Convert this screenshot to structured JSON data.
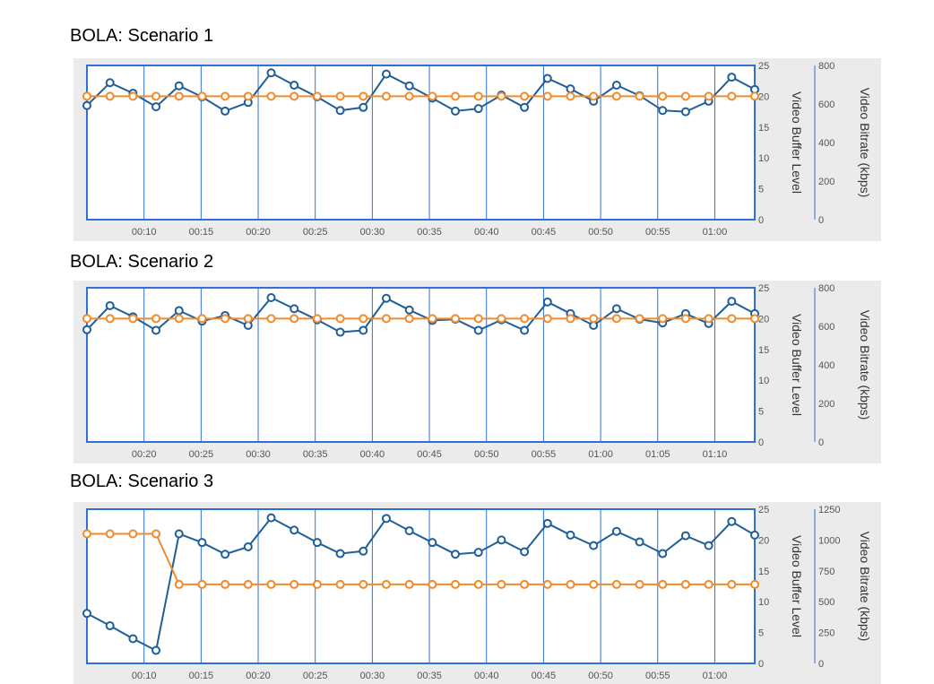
{
  "charts": [
    {
      "title": "BOLA: Scenario 1",
      "chart_data": {
        "type": "line",
        "x_ticks": [
          "00:10",
          "00:15",
          "00:20",
          "00:25",
          "00:30",
          "00:35",
          "00:40",
          "00:45",
          "00:50",
          "00:55",
          "01:00"
        ],
        "right_axis_1": {
          "label": "Video Buffer Level",
          "range": [
            0,
            25
          ],
          "ticks": [
            "0",
            "5",
            "10",
            "15",
            "20",
            "25"
          ]
        },
        "right_axis_2": {
          "label": "Video Bitrate (kbps)",
          "range": [
            0,
            800
          ],
          "ticks": [
            "0",
            "200",
            "400",
            "600",
            "800"
          ]
        },
        "series": [
          {
            "color": "#1f5f99",
            "axis": "buffer",
            "values": [
              18.5,
              22.2,
              20.5,
              18.3,
              21.7,
              19.9,
              17.6,
              19.0,
              23.8,
              21.8,
              19.9,
              17.7,
              18.2,
              23.6,
              21.7,
              19.7,
              17.6,
              18.0,
              20.2,
              18.2,
              22.9,
              21.2,
              19.2,
              21.8,
              20.1,
              17.7,
              17.5,
              19.2,
              23.1,
              21.1
            ]
          },
          {
            "color": "#f28a2a",
            "axis": "bitrate",
            "values": [
              640,
              640,
              640,
              640,
              640,
              640,
              640,
              640,
              640,
              640,
              640,
              640,
              640,
              640,
              640,
              640,
              640,
              640,
              640,
              640,
              640,
              640,
              640,
              640,
              640,
              640,
              640,
              640,
              640,
              640
            ]
          }
        ]
      }
    },
    {
      "title": "BOLA: Scenario 2",
      "chart_data": {
        "type": "line",
        "x_ticks": [
          "00:20",
          "00:25",
          "00:30",
          "00:35",
          "00:40",
          "00:45",
          "00:50",
          "00:55",
          "01:00",
          "01:05",
          "01:10"
        ],
        "right_axis_1": {
          "label": "Video Buffer Level",
          "range": [
            0,
            25
          ],
          "ticks": [
            "0",
            "5",
            "10",
            "15",
            "20",
            "25"
          ]
        },
        "right_axis_2": {
          "label": "Video Bitrate (kbps)",
          "range": [
            0,
            800
          ],
          "ticks": [
            "0",
            "200",
            "400",
            "600",
            "800"
          ]
        },
        "series": [
          {
            "color": "#1f5f99",
            "axis": "buffer",
            "values": [
              18.2,
              22.1,
              20.3,
              18.1,
              21.3,
              19.6,
              20.5,
              18.9,
              23.4,
              21.6,
              19.8,
              17.8,
              18.1,
              23.3,
              21.4,
              19.7,
              19.9,
              18.1,
              19.8,
              18.1,
              22.7,
              20.8,
              18.9,
              21.6,
              19.9,
              19.3,
              20.8,
              19.2,
              22.8,
              20.8
            ]
          },
          {
            "color": "#f28a2a",
            "axis": "bitrate",
            "values": [
              640,
              640,
              640,
              640,
              640,
              640,
              640,
              640,
              640,
              640,
              640,
              640,
              640,
              640,
              640,
              640,
              640,
              640,
              640,
              640,
              640,
              640,
              640,
              640,
              640,
              640,
              640,
              640,
              640,
              640
            ]
          }
        ]
      }
    },
    {
      "title": "BOLA: Scenario 3",
      "chart_data": {
        "type": "line",
        "x_ticks": [
          "00:10",
          "00:15",
          "00:20",
          "00:25",
          "00:30",
          "00:35",
          "00:40",
          "00:45",
          "00:50",
          "00:55",
          "01:00"
        ],
        "right_axis_1": {
          "label": "Video Buffer Level",
          "range": [
            0,
            25
          ],
          "ticks": [
            "0",
            "5",
            "10",
            "15",
            "20",
            "25"
          ]
        },
        "right_axis_2": {
          "label": "Video Bitrate (kbps)",
          "range": [
            0,
            1250
          ],
          "ticks": [
            "0",
            "250",
            "500",
            "750",
            "1000",
            "1250"
          ]
        },
        "series": [
          {
            "color": "#1f5f99",
            "axis": "buffer",
            "values": [
              8.1,
              6.1,
              4.0,
              2.1,
              21.0,
              19.6,
              17.7,
              18.9,
              23.6,
              21.6,
              19.6,
              17.8,
              18.2,
              23.5,
              21.5,
              19.6,
              17.7,
              18.0,
              20.0,
              18.1,
              22.7,
              20.8,
              19.1,
              21.4,
              19.7,
              17.8,
              20.7,
              19.1,
              23.0,
              20.8
            ]
          },
          {
            "color": "#f28a2a",
            "axis": "bitrate",
            "values": [
              1050,
              1050,
              1050,
              1050,
              640,
              640,
              640,
              640,
              640,
              640,
              640,
              640,
              640,
              640,
              640,
              640,
              640,
              640,
              640,
              640,
              640,
              640,
              640,
              640,
              640,
              640,
              640,
              640,
              640,
              640
            ]
          }
        ]
      }
    }
  ]
}
